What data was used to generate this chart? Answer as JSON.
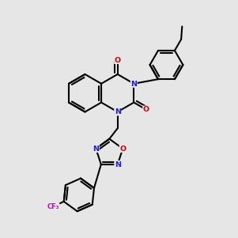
{
  "bg_color": "#e6e6e6",
  "bond_color": "#000000",
  "N_color": "#1a1aff",
  "O_color": "#cc0000",
  "F_color": "#cc00cc",
  "lw": 1.5,
  "fs": 6.8
}
